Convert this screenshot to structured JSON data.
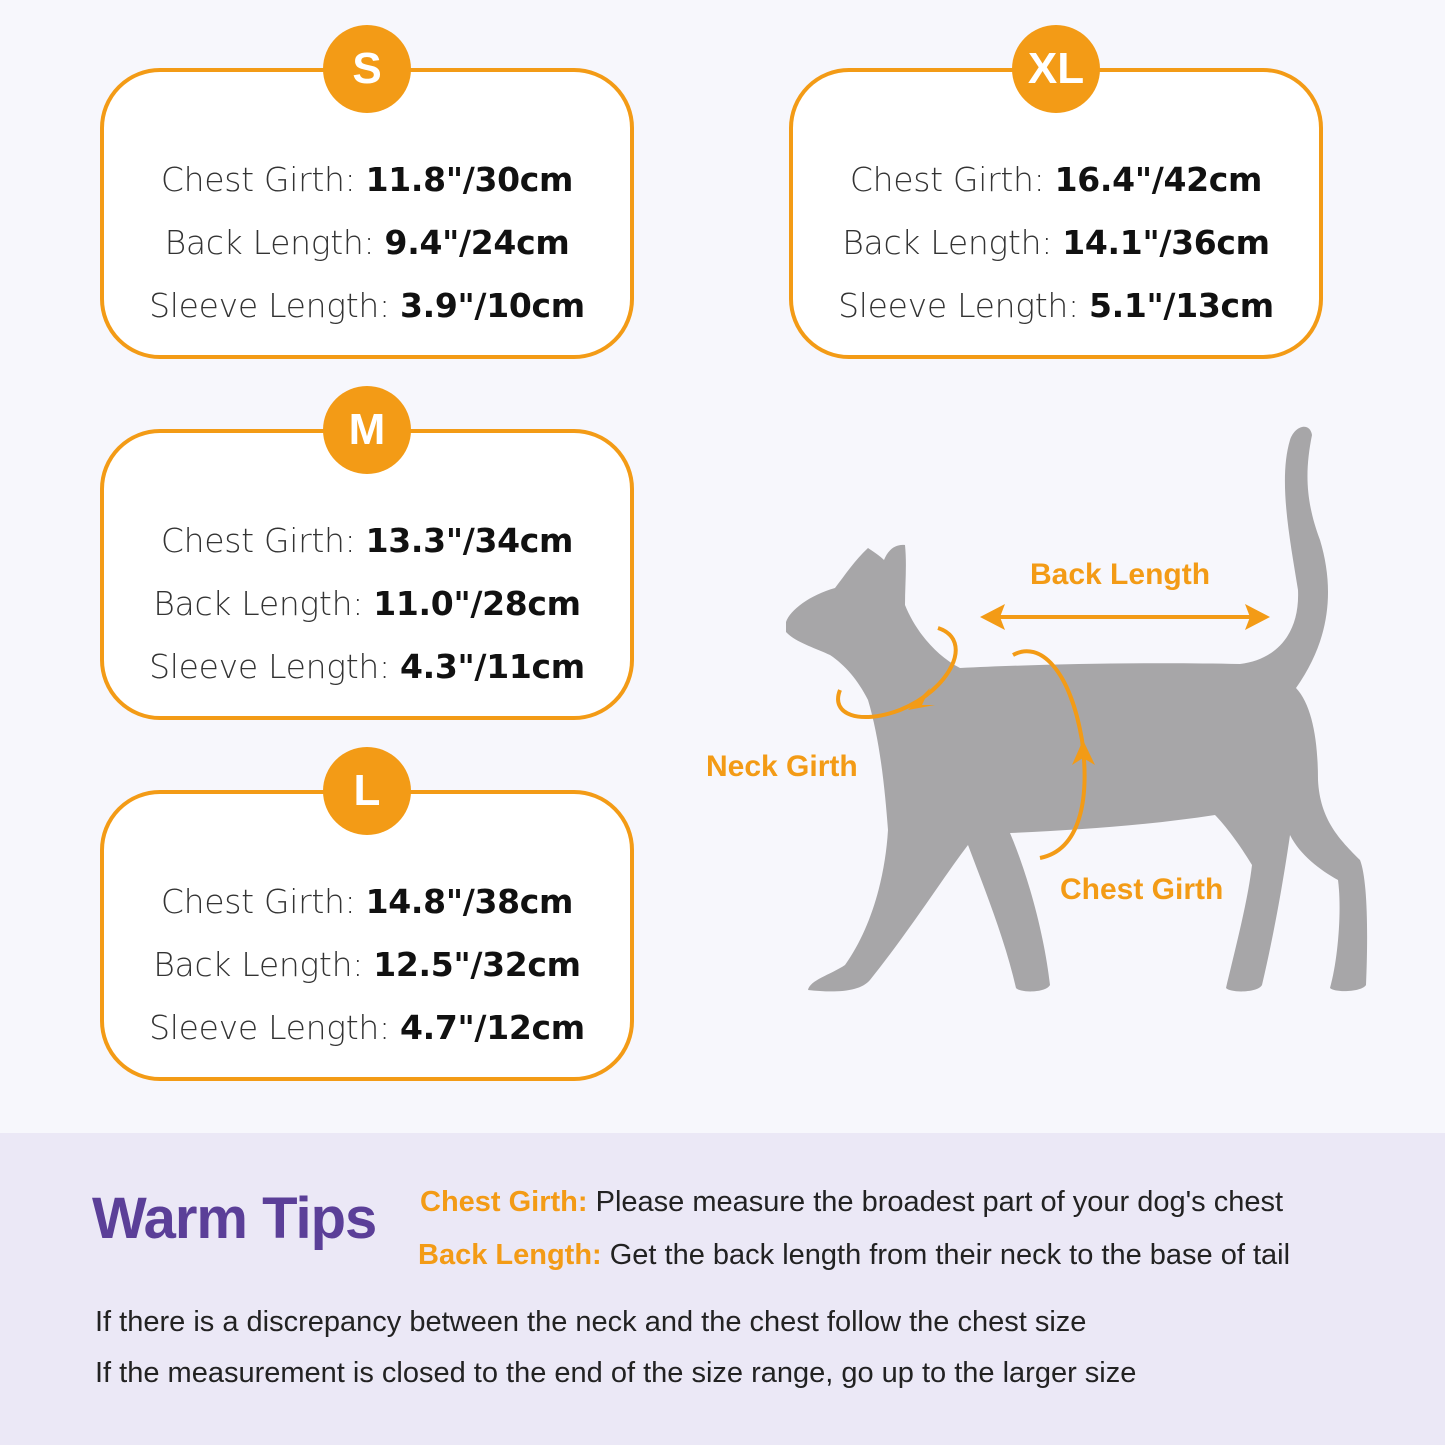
{
  "colors": {
    "accent": "#f39b16",
    "background": "#f7f7fc",
    "tips_band": "#ebe8f6",
    "tips_title": "#5b3f98",
    "cat": "#a7a6a8"
  },
  "sizes": [
    {
      "size": "S",
      "rows": [
        {
          "label": "Chest Girth:",
          "value": "11.8\"/30cm"
        },
        {
          "label": "Back Length:",
          "value": "9.4\"/24cm"
        },
        {
          "label": "Sleeve Length:",
          "value": "3.9\"/10cm"
        }
      ]
    },
    {
      "size": "M",
      "rows": [
        {
          "label": "Chest Girth:",
          "value": "13.3\"/34cm"
        },
        {
          "label": "Back Length:",
          "value": "11.0\"/28cm"
        },
        {
          "label": "Sleeve Length:",
          "value": "4.3\"/11cm"
        }
      ]
    },
    {
      "size": "L",
      "rows": [
        {
          "label": "Chest Girth:",
          "value": "14.8\"/38cm"
        },
        {
          "label": "Back Length:",
          "value": "12.5\"/32cm"
        },
        {
          "label": "Sleeve Length:",
          "value": "4.7\"/12cm"
        }
      ]
    },
    {
      "size": "XL",
      "rows": [
        {
          "label": "Chest Girth:",
          "value": "16.4\"/42cm"
        },
        {
          "label": "Back Length:",
          "value": "14.1\"/36cm"
        },
        {
          "label": "Sleeve Length:",
          "value": "5.1\"/13cm"
        }
      ]
    }
  ],
  "diagram": {
    "back_length": "Back Length",
    "neck_girth": "Neck Girth",
    "chest_girth": "Chest Girth"
  },
  "tips": {
    "title": "Warm Tips",
    "items": [
      {
        "key": "Chest Girth:",
        "text": " Please measure the broadest part of your dog's chest"
      },
      {
        "key": "Back Length:",
        "text": " Get the back length from their neck to the base of tail"
      }
    ],
    "notes": [
      "If there is a discrepancy between the neck and the chest follow the chest size",
      "If the measurement is closed to the end of the size range, go up to the larger size"
    ]
  }
}
